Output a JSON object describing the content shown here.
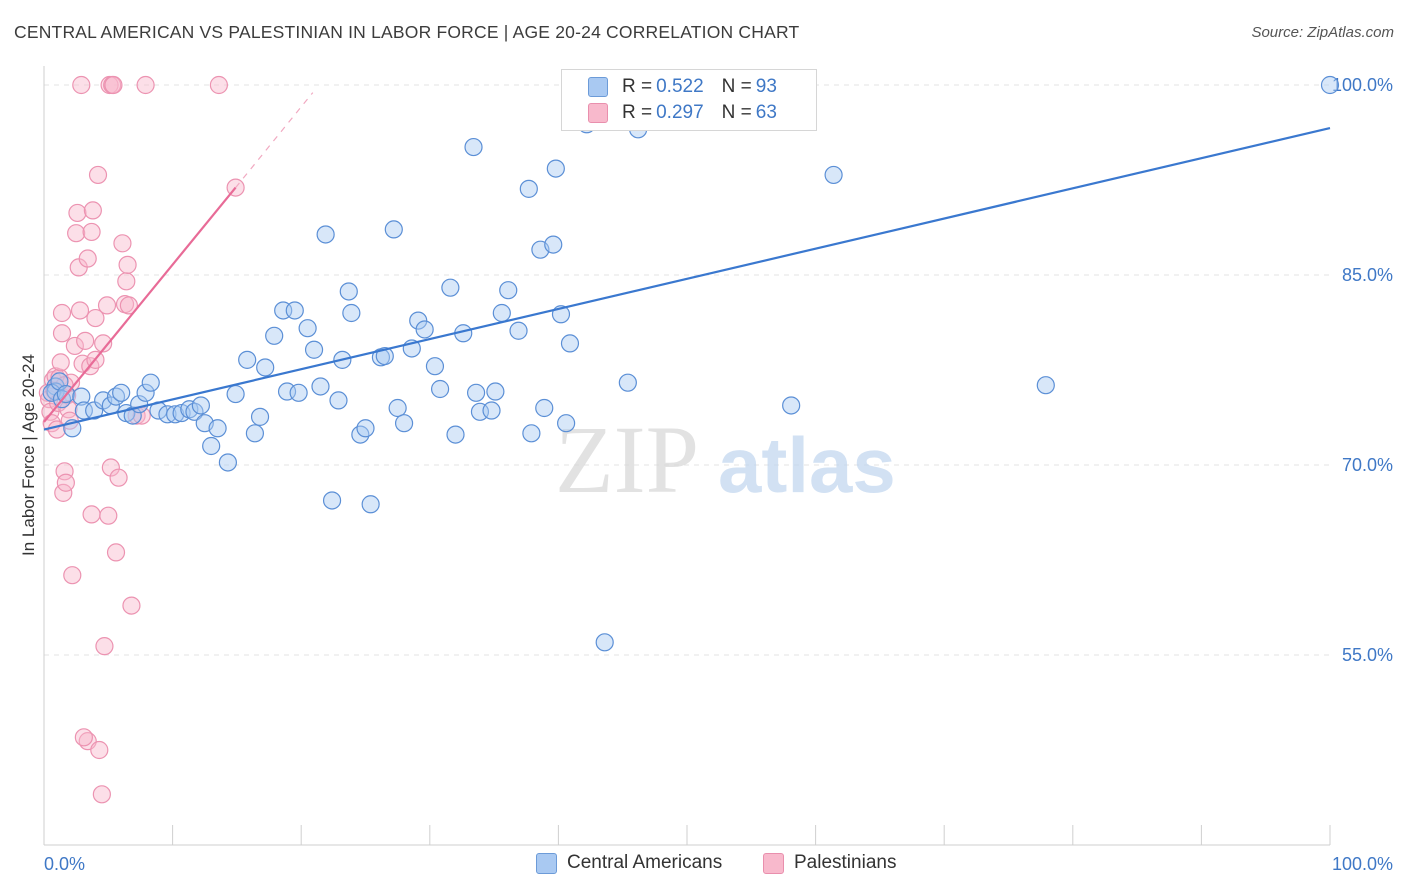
{
  "title": "CENTRAL AMERICAN VS PALESTINIAN IN LABOR FORCE | AGE 20-24 CORRELATION CHART",
  "source": "Source: ZipAtlas.com",
  "watermark": {
    "zip": "ZIP",
    "atlas": "atlas"
  },
  "legend": {
    "rows": [
      {
        "r_label": "R = ",
        "r_value": "0.522",
        "n_label": "N = ",
        "n_value": "93",
        "color": "#a9c9f2"
      },
      {
        "r_label": "R = ",
        "r_value": "0.297",
        "n_label": "N = ",
        "n_value": "63",
        "color": "#f8b9cc"
      }
    ]
  },
  "bottom_legend": {
    "series1": "Central Americans",
    "series2": "Palestinians"
  },
  "chart_data": {
    "type": "scatter",
    "ylabel": "In Labor Force | Age 20-24",
    "xlim": [
      0,
      100
    ],
    "ylim": [
      40,
      101.5
    ],
    "y_ticks": [
      100,
      85,
      70,
      55
    ],
    "y_tick_labels": [
      "100.0%",
      "85.0%",
      "70.0%",
      "55.0%"
    ],
    "x_tick_labels": [
      "0.0%",
      "100.0%"
    ],
    "grid": true,
    "colors": {
      "blue": "#3a78cf",
      "blue_fill": "#a9c9f2",
      "pink": "#e86b97",
      "pink_fill": "#f8b9cc"
    },
    "series": [
      {
        "name": "Central Americans",
        "color": "#3a78cf",
        "trend": [
          [
            0,
            72.8
          ],
          [
            100,
            96.6
          ]
        ],
        "points": [
          [
            0.9,
            76.2
          ],
          [
            0.9,
            75.8
          ],
          [
            0.6,
            75.7
          ],
          [
            1.2,
            76.6
          ],
          [
            1.4,
            75.2
          ],
          [
            1.7,
            75.6
          ],
          [
            2.2,
            72.9
          ],
          [
            2.9,
            75.4
          ],
          [
            3.1,
            74.3
          ],
          [
            3.9,
            74.3
          ],
          [
            4.6,
            75.1
          ],
          [
            5.2,
            74.7
          ],
          [
            5.6,
            75.4
          ],
          [
            6.0,
            75.7
          ],
          [
            6.4,
            74.1
          ],
          [
            6.9,
            73.9
          ],
          [
            7.4,
            74.8
          ],
          [
            7.9,
            75.7
          ],
          [
            8.3,
            76.5
          ],
          [
            8.9,
            74.3
          ],
          [
            9.6,
            74.0
          ],
          [
            10.2,
            74.0
          ],
          [
            10.7,
            74.1
          ],
          [
            11.3,
            74.4
          ],
          [
            11.7,
            74.2
          ],
          [
            12.2,
            74.7
          ],
          [
            12.5,
            73.3
          ],
          [
            13.0,
            71.5
          ],
          [
            13.5,
            72.9
          ],
          [
            14.3,
            70.2
          ],
          [
            14.9,
            75.6
          ],
          [
            15.8,
            78.3
          ],
          [
            16.4,
            72.5
          ],
          [
            16.8,
            73.8
          ],
          [
            17.2,
            77.7
          ],
          [
            17.9,
            80.2
          ],
          [
            18.6,
            82.2
          ],
          [
            18.9,
            75.8
          ],
          [
            19.5,
            82.2
          ],
          [
            19.8,
            75.7
          ],
          [
            20.5,
            80.8
          ],
          [
            21.0,
            79.1
          ],
          [
            21.5,
            76.2
          ],
          [
            21.9,
            88.2
          ],
          [
            22.4,
            67.2
          ],
          [
            22.9,
            75.1
          ],
          [
            23.2,
            78.3
          ],
          [
            23.7,
            83.7
          ],
          [
            23.9,
            82.0
          ],
          [
            24.6,
            72.4
          ],
          [
            25.0,
            72.9
          ],
          [
            25.4,
            66.9
          ],
          [
            26.2,
            78.5
          ],
          [
            26.5,
            78.6
          ],
          [
            27.2,
            88.6
          ],
          [
            27.5,
            74.5
          ],
          [
            28.0,
            73.3
          ],
          [
            28.6,
            79.2
          ],
          [
            29.1,
            81.4
          ],
          [
            29.6,
            80.7
          ],
          [
            30.4,
            77.8
          ],
          [
            30.8,
            76.0
          ],
          [
            31.6,
            84.0
          ],
          [
            32.0,
            72.4
          ],
          [
            32.6,
            80.4
          ],
          [
            33.4,
            95.1
          ],
          [
            33.6,
            75.7
          ],
          [
            33.9,
            74.2
          ],
          [
            34.8,
            74.3
          ],
          [
            35.1,
            75.8
          ],
          [
            35.6,
            82.0
          ],
          [
            36.1,
            83.8
          ],
          [
            36.9,
            80.6
          ],
          [
            37.7,
            91.8
          ],
          [
            37.9,
            72.5
          ],
          [
            38.6,
            87.0
          ],
          [
            38.9,
            74.5
          ],
          [
            39.6,
            87.4
          ],
          [
            39.8,
            93.4
          ],
          [
            40.2,
            81.9
          ],
          [
            40.6,
            73.3
          ],
          [
            40.9,
            79.6
          ],
          [
            42.2,
            96.9
          ],
          [
            43.6,
            56.0
          ],
          [
            41.2,
            97.4
          ],
          [
            45.4,
            76.5
          ],
          [
            46.2,
            96.5
          ],
          [
            58.1,
            74.7
          ],
          [
            58.6,
            99.5
          ],
          [
            61.4,
            92.9
          ],
          [
            77.9,
            76.3
          ],
          [
            100.0,
            100.0
          ],
          [
            42.0,
            99.9
          ]
        ]
      },
      {
        "name": "Palestinians",
        "color": "#e86b97",
        "trend": [
          [
            0,
            73.4
          ],
          [
            14.9,
            91.9
          ]
        ],
        "trend_dashed_end": [
          20.9,
          99.4
        ],
        "points": [
          [
            0.3,
            75.7
          ],
          [
            0.4,
            75.2
          ],
          [
            0.5,
            74.2
          ],
          [
            0.6,
            73.3
          ],
          [
            0.7,
            76.7
          ],
          [
            0.8,
            75.9
          ],
          [
            0.9,
            77.0
          ],
          [
            1.0,
            72.8
          ],
          [
            1.1,
            74.9
          ],
          [
            1.2,
            76.9
          ],
          [
            1.3,
            78.1
          ],
          [
            1.4,
            80.4
          ],
          [
            1.4,
            82.0
          ],
          [
            1.5,
            67.8
          ],
          [
            1.6,
            69.5
          ],
          [
            1.7,
            68.6
          ],
          [
            1.8,
            75.5
          ],
          [
            1.9,
            74.4
          ],
          [
            2.0,
            73.5
          ],
          [
            2.1,
            76.5
          ],
          [
            2.2,
            61.3
          ],
          [
            2.4,
            79.4
          ],
          [
            2.5,
            88.3
          ],
          [
            2.6,
            89.9
          ],
          [
            2.7,
            85.6
          ],
          [
            2.8,
            82.2
          ],
          [
            3.0,
            78.0
          ],
          [
            3.2,
            79.8
          ],
          [
            3.4,
            86.3
          ],
          [
            3.4,
            48.2
          ],
          [
            3.1,
            48.5
          ],
          [
            3.6,
            77.8
          ],
          [
            3.7,
            88.4
          ],
          [
            3.7,
            66.1
          ],
          [
            3.8,
            90.1
          ],
          [
            4.0,
            81.6
          ],
          [
            4.0,
            78.3
          ],
          [
            4.2,
            92.9
          ],
          [
            4.3,
            47.5
          ],
          [
            4.5,
            44.0
          ],
          [
            4.6,
            79.6
          ],
          [
            4.7,
            55.7
          ],
          [
            4.9,
            82.6
          ],
          [
            5.0,
            66.0
          ],
          [
            5.2,
            69.8
          ],
          [
            5.6,
            63.1
          ],
          [
            5.8,
            69.0
          ],
          [
            6.1,
            87.5
          ],
          [
            6.3,
            82.7
          ],
          [
            6.4,
            84.5
          ],
          [
            6.5,
            85.8
          ],
          [
            6.6,
            82.6
          ],
          [
            6.8,
            58.9
          ],
          [
            7.2,
            73.9
          ],
          [
            7.6,
            73.9
          ],
          [
            2.9,
            100.0
          ],
          [
            5.1,
            100.0
          ],
          [
            5.3,
            100.0
          ],
          [
            7.9,
            100.0
          ],
          [
            13.6,
            100.0
          ],
          [
            14.9,
            91.9
          ],
          [
            5.4,
            100.0
          ],
          [
            1.6,
            76.3
          ]
        ]
      }
    ]
  }
}
